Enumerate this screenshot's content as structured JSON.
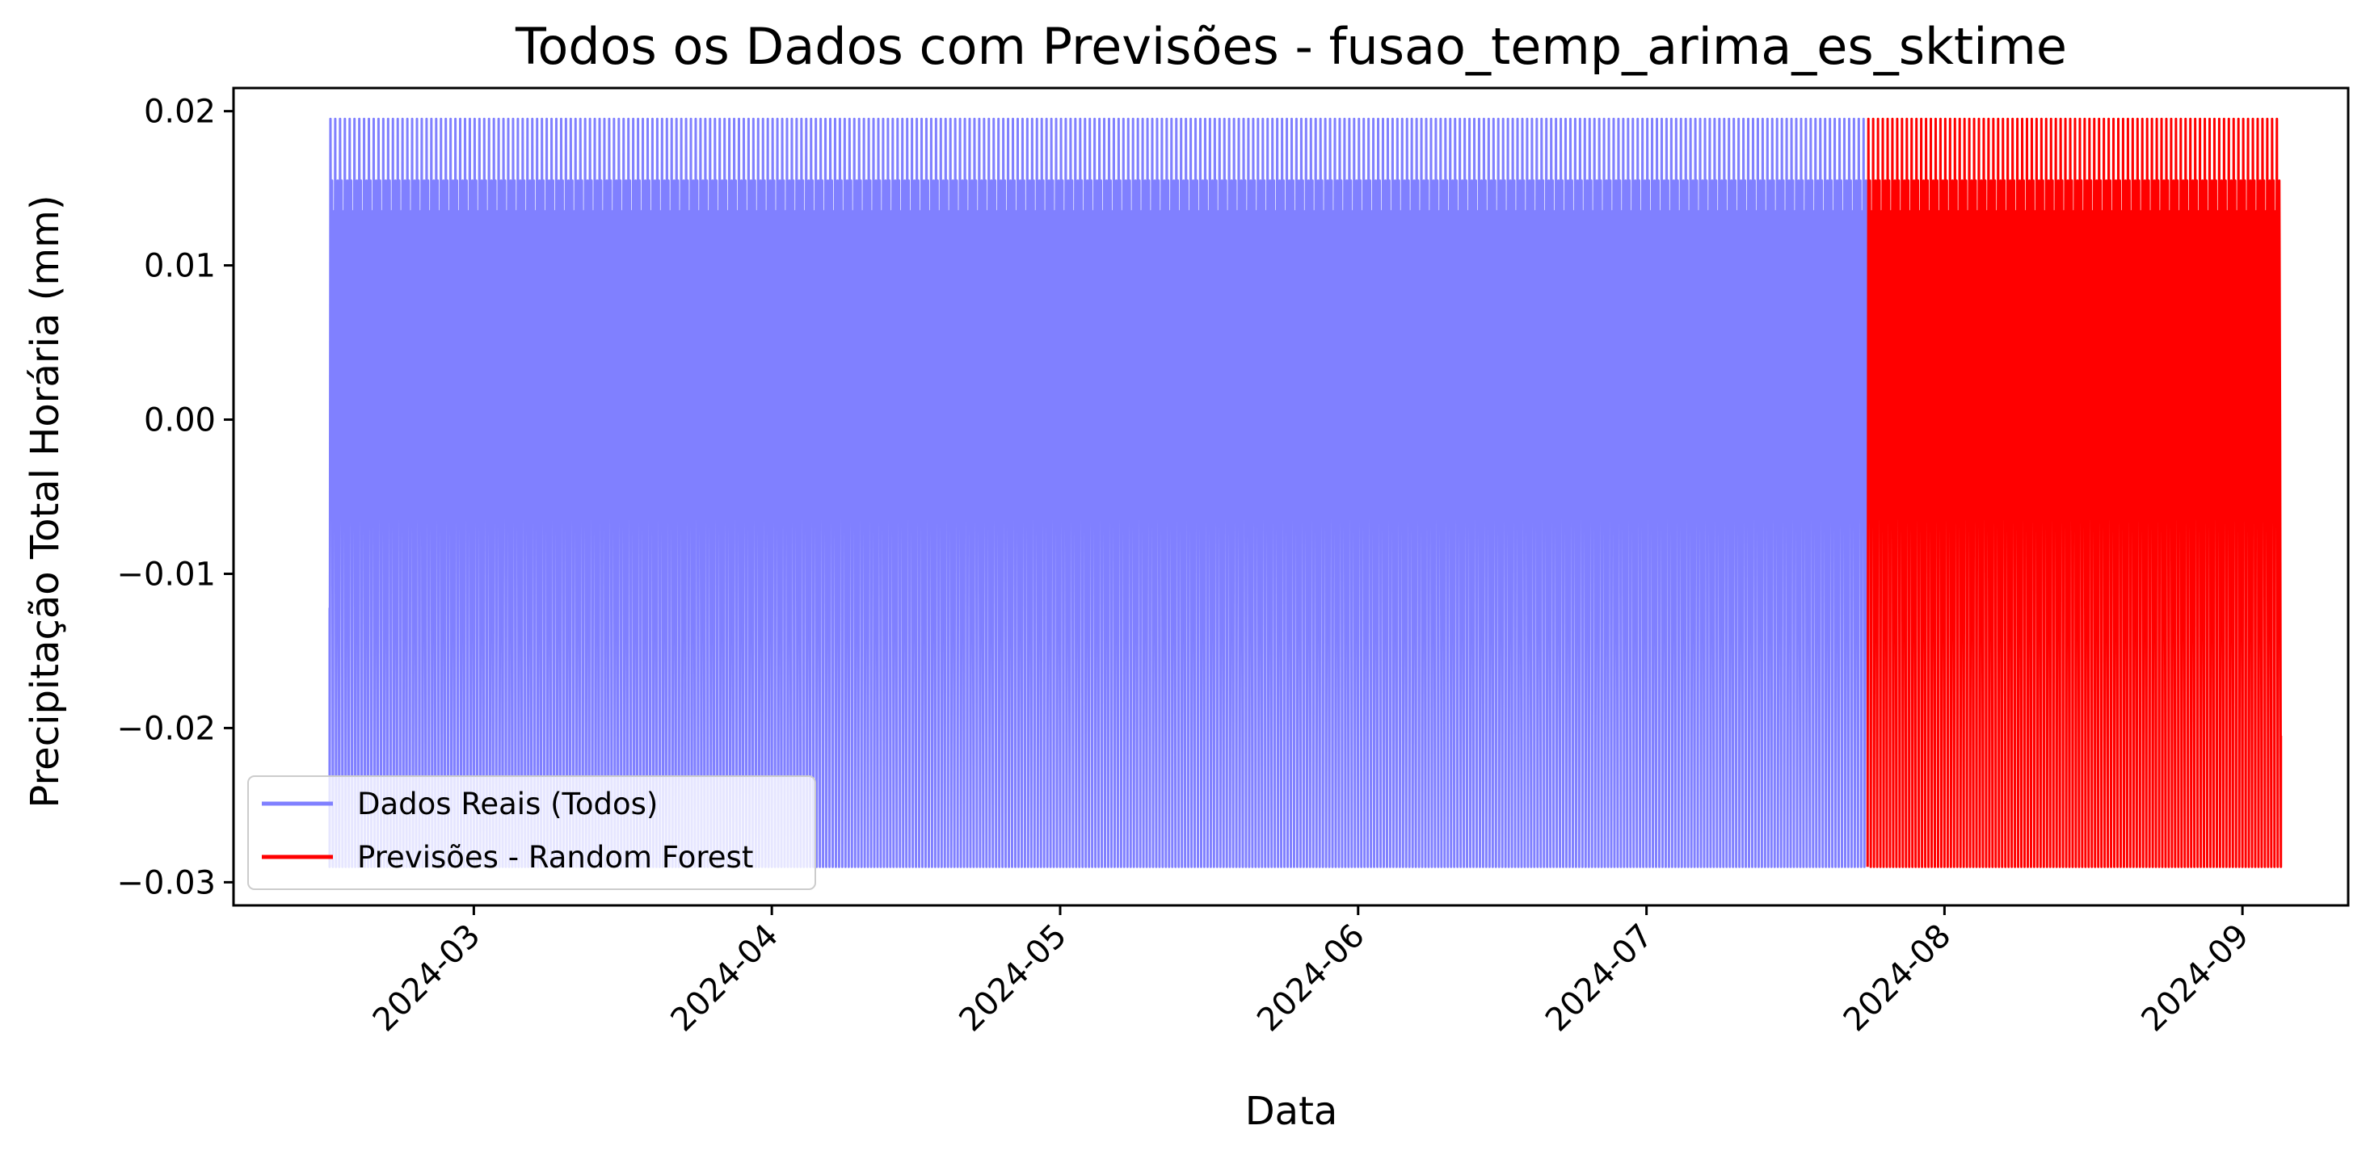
{
  "chart_data": {
    "type": "line",
    "title": "Todos os Dados com Previsões - fusao_temp_arima_es_sktime",
    "xlabel": "Data",
    "ylabel": "Precipitação Total Horária (mm)",
    "x_range": [
      "2024-02-05",
      "2024-09-12"
    ],
    "ylim": [
      -0.0315,
      0.0215
    ],
    "x_ticks": [
      {
        "date": "2024-03-01",
        "label": "2024-03"
      },
      {
        "date": "2024-04-01",
        "label": "2024-04"
      },
      {
        "date": "2024-05-01",
        "label": "2024-05"
      },
      {
        "date": "2024-06-01",
        "label": "2024-06"
      },
      {
        "date": "2024-07-01",
        "label": "2024-07"
      },
      {
        "date": "2024-08-01",
        "label": "2024-08"
      },
      {
        "date": "2024-09-01",
        "label": "2024-09"
      }
    ],
    "y_ticks": [
      {
        "value": 0.02,
        "label": "0.02"
      },
      {
        "value": 0.01,
        "label": "0.01"
      },
      {
        "value": 0.0,
        "label": "0.00"
      },
      {
        "value": -0.01,
        "label": "−0.01"
      },
      {
        "value": -0.02,
        "label": "−0.02"
      },
      {
        "value": -0.03,
        "label": "−0.03"
      }
    ],
    "grid": false,
    "legend_position": "lower-left",
    "series": [
      {
        "name": "Dados Reais (Todos)",
        "color": "#8080ff",
        "start": "2024-02-15",
        "end": "2024-07-24",
        "pattern": "daily",
        "first_value": -0.0122,
        "daily_cycle": [
          -0.029,
          0.0195,
          -0.0015,
          0.0155,
          -0.029,
          0.0135,
          -0.0015,
          0.0195,
          -0.029,
          0.0045,
          0.0155,
          -0.0015
        ]
      },
      {
        "name": "Previsões - Random Forest",
        "color": "#ff0000",
        "start": "2024-07-24",
        "end": "2024-09-05",
        "pattern": "daily",
        "last_value": -0.0205,
        "daily_cycle": [
          -0.029,
          0.0195,
          -0.0015,
          0.0155,
          -0.029,
          0.0135,
          -0.0015,
          0.0195,
          -0.029,
          0.0045,
          0.0155,
          -0.0015
        ]
      }
    ]
  }
}
